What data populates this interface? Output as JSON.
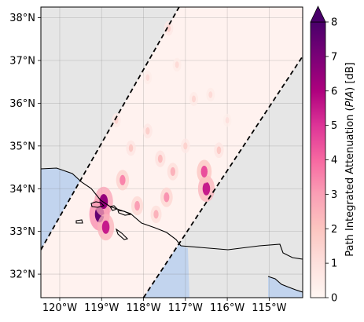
{
  "chart_data": {
    "type": "heatmap",
    "title": "",
    "xlabel": "",
    "ylabel": "",
    "xlim": [
      -120.45,
      -114.2
    ],
    "ylim": [
      31.45,
      38.25
    ],
    "x_ticks": [
      -120,
      -119,
      -118,
      -117,
      -116,
      -115
    ],
    "x_tick_labels": [
      "120°W",
      "119°W",
      "118°W",
      "117°W",
      "116°W",
      "115°W"
    ],
    "y_ticks": [
      32,
      33,
      34,
      35,
      36,
      37,
      38
    ],
    "y_tick_labels": [
      "32°N",
      "33°N",
      "34°N",
      "35°N",
      "36°N",
      "37°N",
      "38°N"
    ],
    "grid": true,
    "colorbar": {
      "label": "Path Integrated Attenuation (PIA) [dB]",
      "label_prefix": "Path Integrated Attenuation (",
      "label_italic": "PIA",
      "label_suffix": ") [dB]",
      "vmin": 0,
      "vmax": 8,
      "extend": "max",
      "colormap": "RdPu",
      "ticks": [
        0,
        1,
        2,
        3,
        4,
        5,
        6,
        7,
        8
      ],
      "tick_labels": [
        "0",
        "1",
        "2",
        "3",
        "4",
        "5",
        "6",
        "7",
        "8"
      ]
    },
    "swath_edges": [
      {
        "name": "west-edge",
        "points": [
          [
            -120.45,
            32.57
          ],
          [
            -117.15,
            38.25
          ]
        ]
      },
      {
        "name": "east-edge",
        "points": [
          [
            -118.0,
            31.45
          ],
          [
            -114.2,
            37.1
          ]
        ]
      }
    ],
    "swath_polygon": [
      [
        -120.45,
        32.57
      ],
      [
        -117.15,
        38.25
      ],
      [
        -114.2,
        38.25
      ],
      [
        -114.2,
        37.1
      ],
      [
        -118.0,
        31.45
      ],
      [
        -120.45,
        31.45
      ]
    ],
    "pia_features": [
      {
        "lon": -119.05,
        "lat": 33.4,
        "value": 7.5
      },
      {
        "lon": -118.95,
        "lat": 33.7,
        "value": 6.5
      },
      {
        "lon": -118.9,
        "lat": 33.1,
        "value": 5.5
      },
      {
        "lon": -118.5,
        "lat": 34.2,
        "value": 3.5
      },
      {
        "lon": -118.15,
        "lat": 33.6,
        "value": 3.0
      },
      {
        "lon": -117.7,
        "lat": 33.4,
        "value": 2.5
      },
      {
        "lon": -117.45,
        "lat": 33.8,
        "value": 3.2
      },
      {
        "lon": -117.3,
        "lat": 34.4,
        "value": 2.5
      },
      {
        "lon": -116.5,
        "lat": 34.0,
        "value": 5.5
      },
      {
        "lon": -116.55,
        "lat": 34.4,
        "value": 4.5
      },
      {
        "lon": -117.6,
        "lat": 34.7,
        "value": 2.2
      },
      {
        "lon": -118.3,
        "lat": 34.95,
        "value": 1.8
      },
      {
        "lon": -117.9,
        "lat": 35.35,
        "value": 1.6
      },
      {
        "lon": -117.0,
        "lat": 35.0,
        "value": 1.5
      },
      {
        "lon": -116.8,
        "lat": 36.1,
        "value": 1.3
      },
      {
        "lon": -116.4,
        "lat": 36.2,
        "value": 1.2
      },
      {
        "lon": -117.4,
        "lat": 37.75,
        "value": 1.5
      },
      {
        "lon": -117.2,
        "lat": 36.9,
        "value": 1.2
      },
      {
        "lon": -116.0,
        "lat": 35.6,
        "value": 1.0
      },
      {
        "lon": -118.65,
        "lat": 35.6,
        "value": 1.4
      },
      {
        "lon": -117.9,
        "lat": 36.6,
        "value": 1.1
      },
      {
        "lon": -116.2,
        "lat": 34.9,
        "value": 1.8
      }
    ],
    "colors": {
      "ocean": "#c2d4ee",
      "land_background": "#e6e6e6",
      "swath_fill": "#fff2ef",
      "swath_edge": "#000000"
    }
  }
}
